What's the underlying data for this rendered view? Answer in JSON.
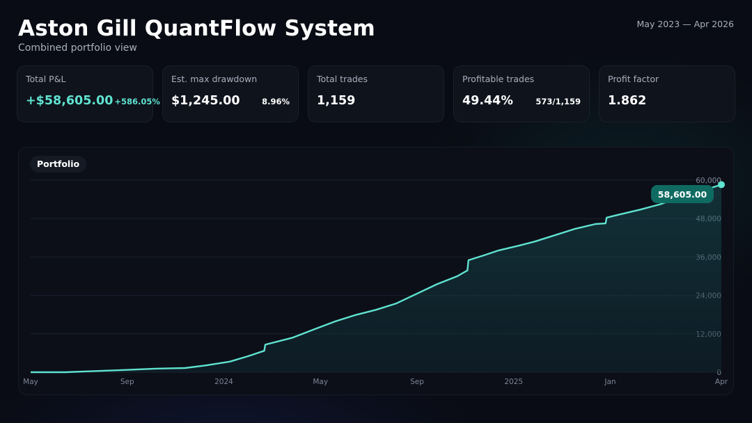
{
  "header": {
    "title": "Aston Gill QuantFlow System",
    "subtitle": "Combined portfolio view",
    "date_range": "May 2023 — Apr 2026"
  },
  "stats": [
    {
      "label": "Total P&L",
      "value": "+$58,605.00",
      "sub": "+586.05%",
      "positive": true
    },
    {
      "label": "Est. max drawdown",
      "value": "$1,245.00",
      "sub": "8.96%",
      "positive": false
    },
    {
      "label": "Total trades",
      "value": "1,159",
      "sub": "",
      "positive": false
    },
    {
      "label": "Profitable trades",
      "value": "49.44%",
      "sub": "573/1,159",
      "positive": false
    },
    {
      "label": "Profit factor",
      "value": "1.862",
      "sub": "",
      "positive": false
    }
  ],
  "chart_panel": {
    "tab_label": "Portfolio"
  },
  "chart_data": {
    "type": "area",
    "series": [
      {
        "name": "Portfolio",
        "color": "#5fe3d0"
      }
    ],
    "x_ticks": [
      "May",
      "Sep",
      "2024",
      "May",
      "Sep",
      "2025",
      "Jan",
      "Apr"
    ],
    "y_ticks": [
      "60,000",
      "48,000",
      "36,000",
      "24,000",
      "12,000",
      "0"
    ],
    "ylim": [
      0,
      60000
    ],
    "last_value_label": "58,605.00",
    "points": [
      [
        0,
        0
      ],
      [
        1.7,
        0
      ],
      [
        3.0,
        300
      ],
      [
        4.6,
        700
      ],
      [
        6.1,
        1100
      ],
      [
        7.6,
        1300
      ],
      [
        8.6,
        2100
      ],
      [
        9.8,
        3300
      ],
      [
        10.7,
        5000
      ],
      [
        11.5,
        6700
      ],
      [
        11.55,
        8600
      ],
      [
        12.9,
        10800
      ],
      [
        14.0,
        13500
      ],
      [
        15.0,
        15900
      ],
      [
        16.0,
        17900
      ],
      [
        17.0,
        19500
      ],
      [
        18.0,
        21500
      ],
      [
        19.0,
        24500
      ],
      [
        20.0,
        27500
      ],
      [
        21.0,
        30000
      ],
      [
        21.5,
        31800
      ],
      [
        21.55,
        35000
      ],
      [
        22.3,
        36500
      ],
      [
        23.0,
        38000
      ],
      [
        24.0,
        39500
      ],
      [
        24.8,
        40800
      ],
      [
        25.9,
        43000
      ],
      [
        26.8,
        44800
      ],
      [
        27.8,
        46300
      ],
      [
        28.3,
        46500
      ],
      [
        28.35,
        48300
      ],
      [
        29.0,
        49300
      ],
      [
        30.0,
        50800
      ],
      [
        31.0,
        52500
      ],
      [
        31.9,
        54500
      ],
      [
        32.6,
        56400
      ],
      [
        33.5,
        57600
      ],
      [
        34.0,
        58605
      ]
    ],
    "x_tick_positions": [
      0,
      4,
      8,
      12,
      16,
      20,
      24,
      28.6
    ],
    "x_max": 28.6,
    "x_scale_max": 34.0
  },
  "colors": {
    "accent": "#5fe3d0",
    "badge": "#0f6b62"
  }
}
